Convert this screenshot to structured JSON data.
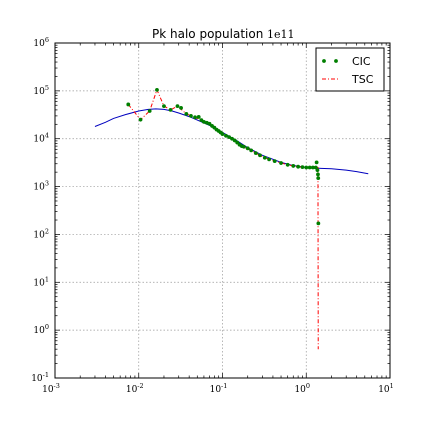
{
  "chart_data": {
    "type": "line",
    "title": "Pk halo population",
    "title_suffix": "1e11",
    "xlabel": "",
    "ylabel": "",
    "xscale": "log",
    "yscale": "log",
    "xlim": [
      0.001,
      10
    ],
    "ylim": [
      0.1,
      1000000
    ],
    "grid": true,
    "legend_position": "top-right",
    "x_ticks": [
      {
        "base": "10",
        "exp": "-3",
        "value": 0.001
      },
      {
        "base": "10",
        "exp": "-2",
        "value": 0.01
      },
      {
        "base": "10",
        "exp": "-1",
        "value": 0.1
      },
      {
        "base": "10",
        "exp": "0",
        "value": 1
      },
      {
        "base": "10",
        "exp": "1",
        "value": 10
      }
    ],
    "y_ticks": [
      {
        "base": "10",
        "exp": "-1",
        "value": 0.1
      },
      {
        "base": "10",
        "exp": "0",
        "value": 1
      },
      {
        "base": "10",
        "exp": "1",
        "value": 10
      },
      {
        "base": "10",
        "exp": "2",
        "value": 100
      },
      {
        "base": "10",
        "exp": "3",
        "value": 1000
      },
      {
        "base": "10",
        "exp": "4",
        "value": 10000
      },
      {
        "base": "10",
        "exp": "5",
        "value": 100000
      },
      {
        "base": "10",
        "exp": "6",
        "value": 1000000
      }
    ],
    "series": [
      {
        "name": "CIC",
        "style": "points",
        "color": "#007f00",
        "points": [
          [
            0.0075,
            52000
          ],
          [
            0.0105,
            25000
          ],
          [
            0.0135,
            38000
          ],
          [
            0.0165,
            105000
          ],
          [
            0.02,
            48000
          ],
          [
            0.024,
            40000
          ],
          [
            0.029,
            48000
          ],
          [
            0.032,
            44000
          ],
          [
            0.037,
            33000
          ],
          [
            0.042,
            30000
          ],
          [
            0.047,
            28000
          ],
          [
            0.052,
            28500
          ],
          [
            0.056,
            24500
          ],
          [
            0.06,
            22500
          ],
          [
            0.065,
            21500
          ],
          [
            0.07,
            20500
          ],
          [
            0.075,
            18500
          ],
          [
            0.08,
            17000
          ],
          [
            0.085,
            15500
          ],
          [
            0.09,
            14500
          ],
          [
            0.095,
            13500
          ],
          [
            0.1,
            12500
          ],
          [
            0.11,
            11500
          ],
          [
            0.12,
            10800
          ],
          [
            0.13,
            10000
          ],
          [
            0.14,
            9200
          ],
          [
            0.15,
            8300
          ],
          [
            0.16,
            7500
          ],
          [
            0.17,
            7000
          ],
          [
            0.18,
            6800
          ],
          [
            0.2,
            6300
          ],
          [
            0.22,
            5700
          ],
          [
            0.25,
            5000
          ],
          [
            0.28,
            4500
          ],
          [
            0.32,
            4000
          ],
          [
            0.36,
            3700
          ],
          [
            0.42,
            3400
          ],
          [
            0.5,
            3100
          ],
          [
            0.6,
            2850
          ],
          [
            0.7,
            2700
          ],
          [
            0.8,
            2600
          ],
          [
            0.9,
            2550
          ],
          [
            1.0,
            2500
          ],
          [
            1.1,
            2500
          ],
          [
            1.2,
            2500
          ],
          [
            1.3,
            2500
          ],
          [
            1.33,
            3200
          ],
          [
            1.36,
            2200
          ],
          [
            1.38,
            1800
          ],
          [
            1.39,
            1500
          ],
          [
            1.395,
            170
          ]
        ]
      },
      {
        "name": "TSC",
        "style": "dash-dot",
        "color": "#ff0000",
        "points": [
          [
            0.0075,
            52000
          ],
          [
            0.0105,
            25000
          ],
          [
            0.0135,
            38000
          ],
          [
            0.0165,
            105000
          ],
          [
            0.02,
            48000
          ],
          [
            0.024,
            40000
          ],
          [
            0.029,
            48000
          ],
          [
            0.037,
            33000
          ],
          [
            0.047,
            28000
          ],
          [
            0.06,
            22500
          ],
          [
            0.075,
            18500
          ],
          [
            0.1,
            12500
          ],
          [
            0.13,
            10000
          ],
          [
            0.17,
            7000
          ],
          [
            0.22,
            5700
          ],
          [
            0.3,
            4200
          ],
          [
            0.42,
            3400
          ],
          [
            0.6,
            2850
          ],
          [
            0.8,
            2600
          ],
          [
            1.0,
            2500
          ],
          [
            1.3,
            2500
          ],
          [
            1.38,
            2500
          ],
          [
            1.39,
            0.4
          ]
        ]
      },
      {
        "style": "line",
        "color": "#0000bf",
        "points": [
          [
            0.003,
            18000
          ],
          [
            0.004,
            22000
          ],
          [
            0.005,
            26500
          ],
          [
            0.007,
            32000
          ],
          [
            0.01,
            38000
          ],
          [
            0.013,
            41000
          ],
          [
            0.016,
            42000
          ],
          [
            0.02,
            41000
          ],
          [
            0.025,
            38000
          ],
          [
            0.03,
            34500
          ],
          [
            0.04,
            29000
          ],
          [
            0.05,
            24500
          ],
          [
            0.07,
            19000
          ],
          [
            0.1,
            13500
          ],
          [
            0.15,
            9000
          ],
          [
            0.2,
            6500
          ],
          [
            0.3,
            4500
          ],
          [
            0.5,
            3200
          ],
          [
            0.7,
            2750
          ],
          [
            1.0,
            2500
          ],
          [
            1.5,
            2400
          ],
          [
            2.0,
            2350
          ],
          [
            3.0,
            2200
          ],
          [
            4.0,
            2050
          ],
          [
            5.5,
            1850
          ]
        ]
      }
    ]
  }
}
